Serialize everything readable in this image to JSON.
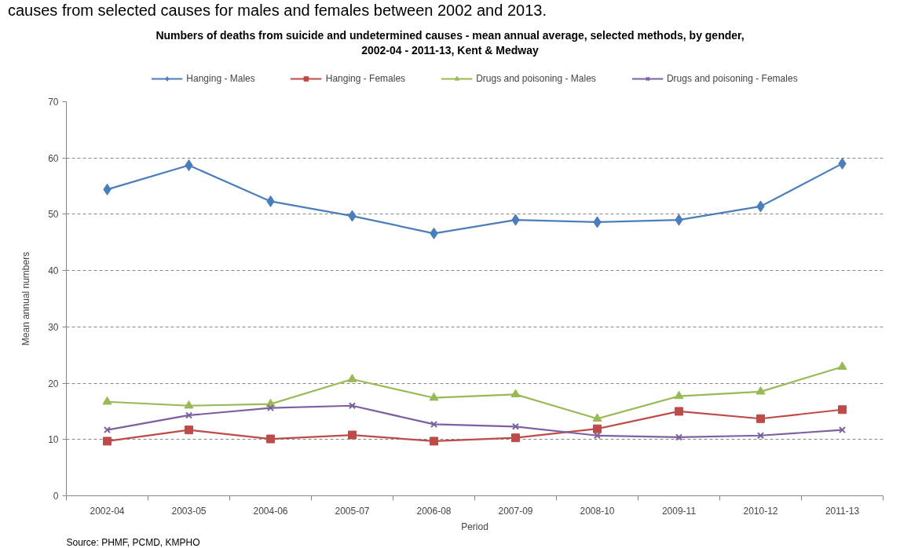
{
  "chart_data": {
    "type": "line",
    "title": "Numbers of deaths from suicide and undetermined causes - mean annual average, selected methods, by gender,\n2002-04 - 2011-13, Kent & Medway",
    "xlabel": "Period",
    "ylabel": "Mean annual numbers",
    "categories": [
      "2002-04",
      "2003-05",
      "2004-06",
      "2005-07",
      "2006-08",
      "2007-09",
      "2008-10",
      "2009-11",
      "2010-12",
      "2011-13"
    ],
    "ylim": [
      0,
      70
    ],
    "yticks": [
      0,
      10,
      20,
      30,
      40,
      50,
      60,
      70
    ],
    "grid": "y",
    "legend": "top",
    "series": [
      {
        "name": "Hanging - Males",
        "color": "#4a7ebb",
        "marker": "diamond",
        "values": [
          54.4,
          58.7,
          52.3,
          49.7,
          46.6,
          49.0,
          48.6,
          49.0,
          51.4,
          59.0
        ]
      },
      {
        "name": "Hanging - Females",
        "color": "#be4b48",
        "marker": "square",
        "values": [
          9.7,
          11.7,
          10.1,
          10.8,
          9.7,
          10.3,
          11.9,
          15.0,
          13.7,
          15.3
        ]
      },
      {
        "name": "Drugs and poisoning - Males",
        "color": "#98b954",
        "marker": "triangle",
        "values": [
          16.7,
          16.0,
          16.3,
          20.7,
          17.4,
          18.0,
          13.7,
          17.7,
          18.5,
          22.9
        ]
      },
      {
        "name": "Drugs and poisoning - Females",
        "color": "#7d60a0",
        "marker": "cross",
        "values": [
          11.7,
          14.3,
          15.6,
          16.0,
          12.7,
          12.3,
          10.7,
          10.4,
          10.7,
          11.7
        ]
      }
    ],
    "annotations": [
      "causes from selected causes for males and females between 2002 and 2013.",
      "Source: PHMF, PCMD, KMPHO"
    ]
  }
}
